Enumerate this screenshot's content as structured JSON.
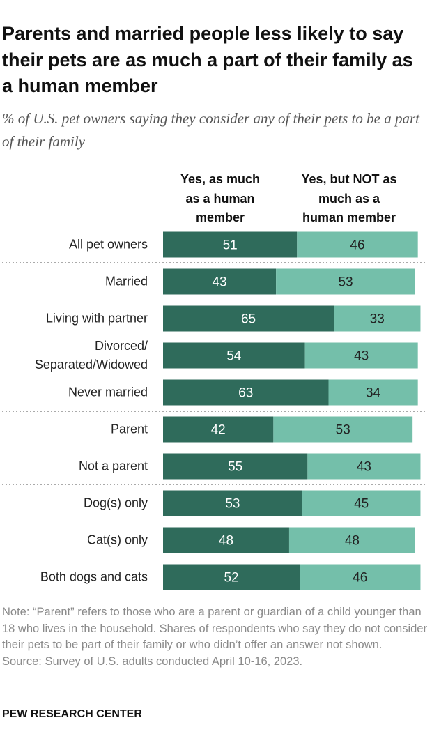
{
  "chart_data": {
    "type": "stacked-bar-horizontal",
    "title": "Parents and married people less likely to say their pets are as much a part of their family as a human member",
    "subtitle": "% of U.S. pet owners saying they consider any of their pets to be a part of their family",
    "categories": [
      "All pet owners",
      "Married",
      "Living with partner",
      "Divorced/\nSeparated/Widowed",
      "Never married",
      "Parent",
      "Not a parent",
      "Dog(s) only",
      "Cat(s) only",
      "Both dogs and cats"
    ],
    "series": [
      {
        "name": "Yes, as much\nas a human\nmember",
        "color": "#2f6b5b",
        "values": [
          51,
          43,
          65,
          54,
          63,
          42,
          55,
          53,
          48,
          52
        ]
      },
      {
        "name": "Yes, but NOT as\nmuch as a\nhuman member",
        "color": "#74bfaa",
        "values": [
          46,
          53,
          33,
          43,
          34,
          53,
          43,
          45,
          48,
          46
        ]
      }
    ],
    "xlim": [
      0,
      100
    ],
    "note": "Note: “Parent” refers to those who are a parent or guardian of a child younger than 18 who lives in the household. Shares of respondents who say they do not consider their pets to be part of their family or who didn’t offer an answer not shown.",
    "source": "Source: Survey of U.S. adults conducted April 10-16, 2023.",
    "footer": "PEW RESEARCH CENTER"
  }
}
